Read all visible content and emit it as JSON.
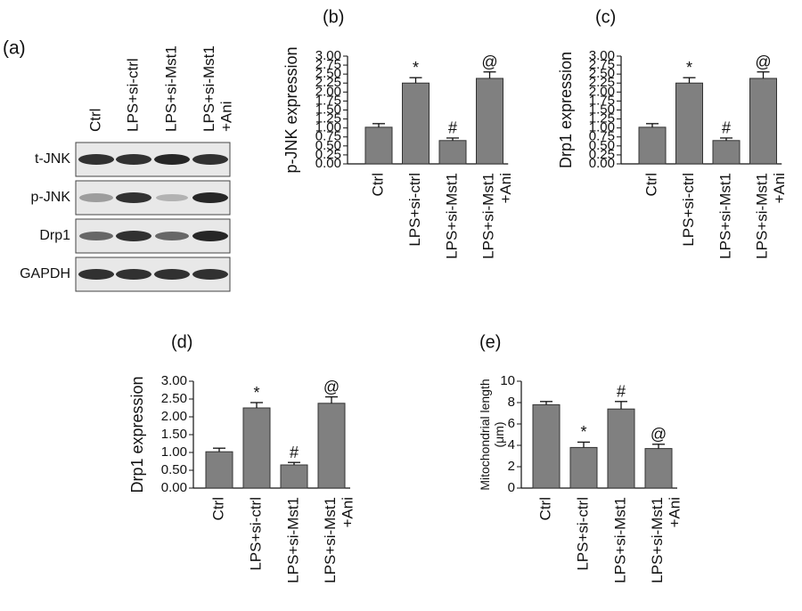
{
  "blot": {
    "panel": "(a)",
    "lanes": [
      "Ctrl",
      "LPS+si-ctrl",
      "LPS+si-Mst1",
      "LPS+si-Mst1\n+Ani"
    ],
    "rows": [
      "t-JNK",
      "p-JNK",
      "Drp1",
      "GAPDH"
    ]
  },
  "chart_data": [
    {
      "type": "bar",
      "panel": "(b)",
      "ylabel": "p-JNK expression",
      "color": "#808080",
      "categories": [
        "Ctrl",
        "LPS+si-ctrl",
        "LPS+si-Mst1",
        "LPS+si-Mst1\n+Ani"
      ],
      "values": [
        1.02,
        2.25,
        0.65,
        2.38
      ],
      "errors": [
        0.1,
        0.15,
        0.07,
        0.18
      ],
      "annotations": [
        null,
        "*",
        "#",
        "@"
      ],
      "ylim": [
        0,
        3
      ],
      "yticks": [
        {
          "value": 0,
          "label": "0.00"
        },
        {
          "value": 0.25,
          "label": "0.25"
        },
        {
          "value": 0.5,
          "label": "0.50"
        },
        {
          "value": 0.75,
          "label": "0.75"
        },
        {
          "value": 1,
          "label": "1.00"
        },
        {
          "value": 1.25,
          "label": "1.25"
        },
        {
          "value": 1.5,
          "label": "1.50"
        },
        {
          "value": 1.75,
          "label": "1.75"
        },
        {
          "value": 2,
          "label": "2.00"
        },
        {
          "value": 2.25,
          "label": "2.25"
        },
        {
          "value": 2.5,
          "label": "2.50"
        },
        {
          "value": 2.75,
          "label": "2.75"
        },
        {
          "value": 3,
          "label": "3.00"
        }
      ]
    },
    {
      "type": "bar",
      "panel": "(c)",
      "ylabel": "Drp1 expression",
      "color": "#808080",
      "categories": [
        "Ctrl",
        "LPS+si-ctrl",
        "LPS+si-Mst1",
        "LPS+si-Mst1\n+Ani"
      ],
      "values": [
        1.02,
        2.25,
        0.65,
        2.38
      ],
      "errors": [
        0.1,
        0.15,
        0.07,
        0.18
      ],
      "annotations": [
        null,
        "*",
        "#",
        "@"
      ],
      "ylim": [
        0,
        3
      ],
      "yticks": [
        {
          "value": 0,
          "label": "0.00"
        },
        {
          "value": 0.25,
          "label": "0.25"
        },
        {
          "value": 0.5,
          "label": "0.50"
        },
        {
          "value": 0.75,
          "label": "0.75"
        },
        {
          "value": 1,
          "label": "1.00"
        },
        {
          "value": 1.25,
          "label": "1.25"
        },
        {
          "value": 1.5,
          "label": "1.50"
        },
        {
          "value": 1.75,
          "label": "1.75"
        },
        {
          "value": 2,
          "label": "2.00"
        },
        {
          "value": 2.25,
          "label": "2.25"
        },
        {
          "value": 2.5,
          "label": "2.50"
        },
        {
          "value": 2.75,
          "label": "2.75"
        },
        {
          "value": 3,
          "label": "3.00"
        }
      ]
    },
    {
      "type": "bar",
      "panel": "(d)",
      "ylabel": "Drp1 expression",
      "color": "#808080",
      "categories": [
        "Ctrl",
        "LPS+si-ctrl",
        "LPS+si-Mst1",
        "LPS+si-Mst1\n+Ani"
      ],
      "values": [
        1.02,
        2.25,
        0.65,
        2.38
      ],
      "errors": [
        0.1,
        0.15,
        0.07,
        0.18
      ],
      "annotations": [
        null,
        "*",
        "#",
        "@"
      ],
      "ylim": [
        0,
        3
      ],
      "yticks": [
        {
          "value": 0,
          "label": "0.00"
        },
        {
          "value": 0.5,
          "label": "0.50"
        },
        {
          "value": 1,
          "label": "1.00"
        },
        {
          "value": 1.5,
          "label": "1.50"
        },
        {
          "value": 2,
          "label": "2.00"
        },
        {
          "value": 2.5,
          "label": "2.50"
        },
        {
          "value": 3,
          "label": "3.00"
        }
      ]
    },
    {
      "type": "bar",
      "panel": "(e)",
      "ylabel": "Mitochondrial length\n(μm)",
      "color": "#808080",
      "categories": [
        "Ctrl",
        "LPS+si-ctrl",
        "LPS+si-Mst1",
        "LPS+si-Mst1\n+Ani"
      ],
      "values": [
        7.8,
        3.8,
        7.4,
        3.7
      ],
      "errors": [
        0.3,
        0.5,
        0.7,
        0.4
      ],
      "annotations": [
        null,
        "*",
        "#",
        "@"
      ],
      "ylim": [
        0,
        10
      ],
      "yticks": [
        0,
        2,
        4,
        6,
        8,
        10
      ]
    }
  ]
}
